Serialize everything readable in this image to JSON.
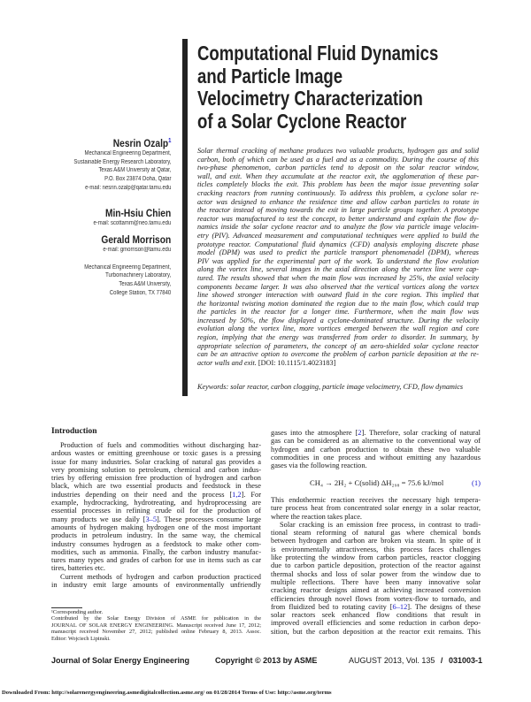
{
  "title_lines": [
    "Computational Fluid Dynamics",
    "and Particle Image",
    "Velocimetry Characterization",
    "of a Solar Cyclone Reactor"
  ],
  "authors": [
    {
      "name": "Nesrin Ozalp",
      "sup": "1",
      "lines": [
        "Mechanical Engineering Department,",
        "Sustainable Energy Research Laboratory,",
        "Texas A&M University at Qatar,",
        "P.O. Box 23874 Doha, Qatar",
        "e-mail: nesrin.ozalp@qatar.tamu.edu"
      ]
    },
    {
      "name": "Min-Hsiu Chien",
      "sup": "",
      "lines": [
        "e-mail: scottamm@neo.tamu.edu"
      ]
    },
    {
      "name": "Gerald Morrison",
      "sup": "",
      "lines": [
        "e-mail: gmorrison@tamu.edu",
        "",
        "Mechanical Engineering Department,",
        "Turbomachinery Laboratory,",
        "Texas A&M University,",
        "College Station, TX 77840"
      ]
    }
  ],
  "abstract_lines": [
    "Solar thermal cracking of methane produces two valuable products, hydrogen gas and solid",
    "carbon, both of which can be used as a fuel and as a commodity. During the course of this",
    "two-phase phenomenon, carbon particles tend to deposit on the solar reactor window,",
    "wall, and exit. When they accumulate at the reactor exit, the agglomeration of these par-",
    "ticles completely blocks the exit. This problem has been the major issue preventing solar",
    "cracking reactors from running continuously. To address this problem, a cyclone solar re-",
    "actor was designed to enhance the residence time and allow carbon particles to rotate in",
    "the reactor instead of moving towards the exit in large particle groups together. A prototype",
    "reactor was manufactured to test the concept, to better understand and explain the flow dy-",
    "namics inside the solar cyclone reactor and to analyze the flow via particle image velocim-",
    "etry (PIV). Advanced measurement and computational techniques were applied to build the",
    "prototype reactor. Computational fluid dynamics (CFD) analysis employing discrete phase",
    "model (DPM) was used to predict the particle transport phenomenadel (DPM), whereas",
    "PIV was applied for the experimental part of the work. To understand the flow evolution",
    "along the vortex line, several images in the axial direction along the vortex line were cap-",
    "tured. The results showed that when the main flow was increased by 25%, the axial velocity",
    "components became larger. It was also observed that the vertical vortices along the vortex",
    "line showed stronger interaction with outward fluid in the core region. This implied that",
    "the horizontal twisting motion dominated the region due to the main flow, which could trap",
    "the particles in the reactor for a longer time. Furthermore, when the main flow was",
    "increased by 50%, the flow displayed a cyclone-dominated structure. During the velocity",
    "evolution along the vortex line, more vortices emerged between the wall region and core",
    "region, implying that the energy was transferred from order to disorder. In summary, by",
    "appropriate selection of parameters, the concept of an aero-shielded solar cyclone reactor",
    "can be an attractive option to overcome the problem of carbon particle deposition at the re-",
    "actor walls and exit."
  ],
  "doi": "[DOI: 10.1115/1.4023183]",
  "keywords": "Keywords:  solar reactor, carbon clogging, particle image velocimetry, CFD, flow dynamics",
  "intro_heading": "Introduction",
  "left_lines": [
    {
      "t": "Production of fuels and commodities without discharging haz-",
      "ind": true
    },
    {
      "t": "ardous wastes or emitting greenhouse or toxic gases is a pressing"
    },
    {
      "t": "issue for many industries. Solar cracking of natural gas provides a"
    },
    {
      "t": "very promising solution to petroleum, chemical and carbon indus-"
    },
    {
      "t": "tries by offering emission free production of hydrogen and carbon"
    },
    {
      "t": "black, which are two essential products and feedstock in these"
    },
    {
      "t": "industries depending on their need and the process [1,2]. For"
    },
    {
      "t": "example, hydrocracking, hydrotreating, and hydroprocessing are"
    },
    {
      "t": "essential processes in refining crude oil for the production of"
    },
    {
      "t": "many products we use daily [3–5]. These processes consume large"
    },
    {
      "t": "amounts of hydrogen making hydrogen one of the most important"
    },
    {
      "t": "products in petroleum industry. In the same way, the chemical"
    },
    {
      "t": "industry consumes hydrogen as a feedstock to make other com-"
    },
    {
      "t": "modities, such as ammonia. Finally, the carbon industry manufac-"
    },
    {
      "t": "tures many types and grades of carbon for use in items such as car"
    },
    {
      "t": "tires, batteries etc.",
      "last": true
    },
    {
      "t": "Current methods of hydrogen and carbon production practiced",
      "ind": true
    },
    {
      "t": "in industry emit large amounts of environmentally unfriendly"
    }
  ],
  "right_lines_1": [
    {
      "t": "gases into the atmosphere [2]. Therefore, solar cracking of natural"
    },
    {
      "t": "gas can be considered as an alternative to the conventional way of"
    },
    {
      "t": "hydrogen and carbon production to obtain these two valuable"
    },
    {
      "t": "commodities in one process and without emitting any hazardous"
    },
    {
      "t": "gases via the following reaction.",
      "last": true
    }
  ],
  "equation": {
    "text": "CH₄ → 2H₂ + C(solid)    ΔH₂₉₈ = 75.6 kJ/mol",
    "number": "(1)"
  },
  "right_lines_2": [
    {
      "t": "This endothermic reaction receives the necessary high tempera-"
    },
    {
      "t": "ture process heat from concentrated solar energy in a solar reactor,"
    },
    {
      "t": "where the reaction takes place.",
      "last": true
    },
    {
      "t": "Solar cracking is an emission free process, in contrast to tradi-",
      "ind": true
    },
    {
      "t": "tional steam reforming of natural gas where chemical bonds"
    },
    {
      "t": "between hydrogen and carbon are broken via steam. In spite of it"
    },
    {
      "t": "is environmentally attractiveness, this process faces challenges"
    },
    {
      "t": "like protecting the window from carbon particles, reactor clogging"
    },
    {
      "t": "due to carbon particle deposition, protection of the reactor against"
    },
    {
      "t": "thermal shocks and loss of solar power from the window due to"
    },
    {
      "t": "multiple reflections. There have been many innovative solar"
    },
    {
      "t": "cracking reactor designs aimed at achieving increased conversion"
    },
    {
      "t": "efficiencies through novel flows from vortex-flow to tornado, and"
    },
    {
      "t": "from fluidized bed to rotating cavity [6–12]. The designs of these"
    },
    {
      "t": "solar reactors seek enhanced flow conditions that result in"
    },
    {
      "t": "improved overall efficiencies and some reduction in carbon depo-"
    },
    {
      "t": "sition, but the carbon deposition at the reactor exit remains. This"
    }
  ],
  "footnote_lines": [
    {
      "t": "¹Corresponding author.",
      "ind": true,
      "last": true
    },
    {
      "t": "Contributed by the Solar Energy Division of ASME for publication in the",
      "ind": true
    },
    {
      "t": "JOURNAL OF SOLAR ENERGY ENGINEERING. Manuscript received June 17, 2012; final"
    },
    {
      "t": "manuscript received November 27, 2012; published online February 8, 2013. Assoc."
    },
    {
      "t": "Editor: Wojciech Lipinski.",
      "last": true
    }
  ],
  "footer": {
    "journal": "Journal of Solar Energy Engineering",
    "copyright": "Copyright © 2013 by ASME",
    "issue": "AUGUST 2013, Vol. 135",
    "separator": "/",
    "page": "031003-1"
  },
  "download_line": "Downloaded From: http://solarenergyengineering.asmedigitalcollection.asme.org/ on 01/28/2014 Terms of Use: http://asme.org/terms",
  "colors": {
    "citation": "#1a1acc",
    "text": "#1a1a1a"
  }
}
